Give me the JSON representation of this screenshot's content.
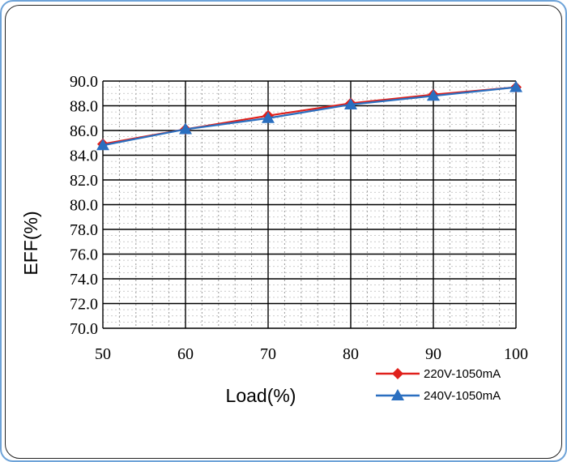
{
  "chart_data": {
    "type": "line",
    "x": [
      50,
      60,
      70,
      80,
      90,
      100
    ],
    "series": [
      {
        "name": "220V-1050mA",
        "values": [
          84.9,
          86.1,
          87.2,
          88.2,
          88.9,
          89.5
        ],
        "color": "#e0201b",
        "marker": "diamond"
      },
      {
        "name": "240V-1050mA",
        "values": [
          84.8,
          86.1,
          87.0,
          88.1,
          88.8,
          89.5
        ],
        "color": "#2a6fc0",
        "marker": "triangle"
      }
    ],
    "xlabel": "Load(%)",
    "ylabel": "EFF(%)",
    "xlim": [
      50,
      100
    ],
    "ylim": [
      70,
      90
    ],
    "x_ticks": [
      "50",
      "60",
      "70",
      "80",
      "90",
      "100"
    ],
    "y_ticks": [
      "70.0",
      "72.0",
      "74.0",
      "76.0",
      "78.0",
      "80.0",
      "82.0",
      "84.0",
      "86.0",
      "88.0",
      "90.0"
    ],
    "grid": true,
    "legend_position": "bottom-right"
  }
}
